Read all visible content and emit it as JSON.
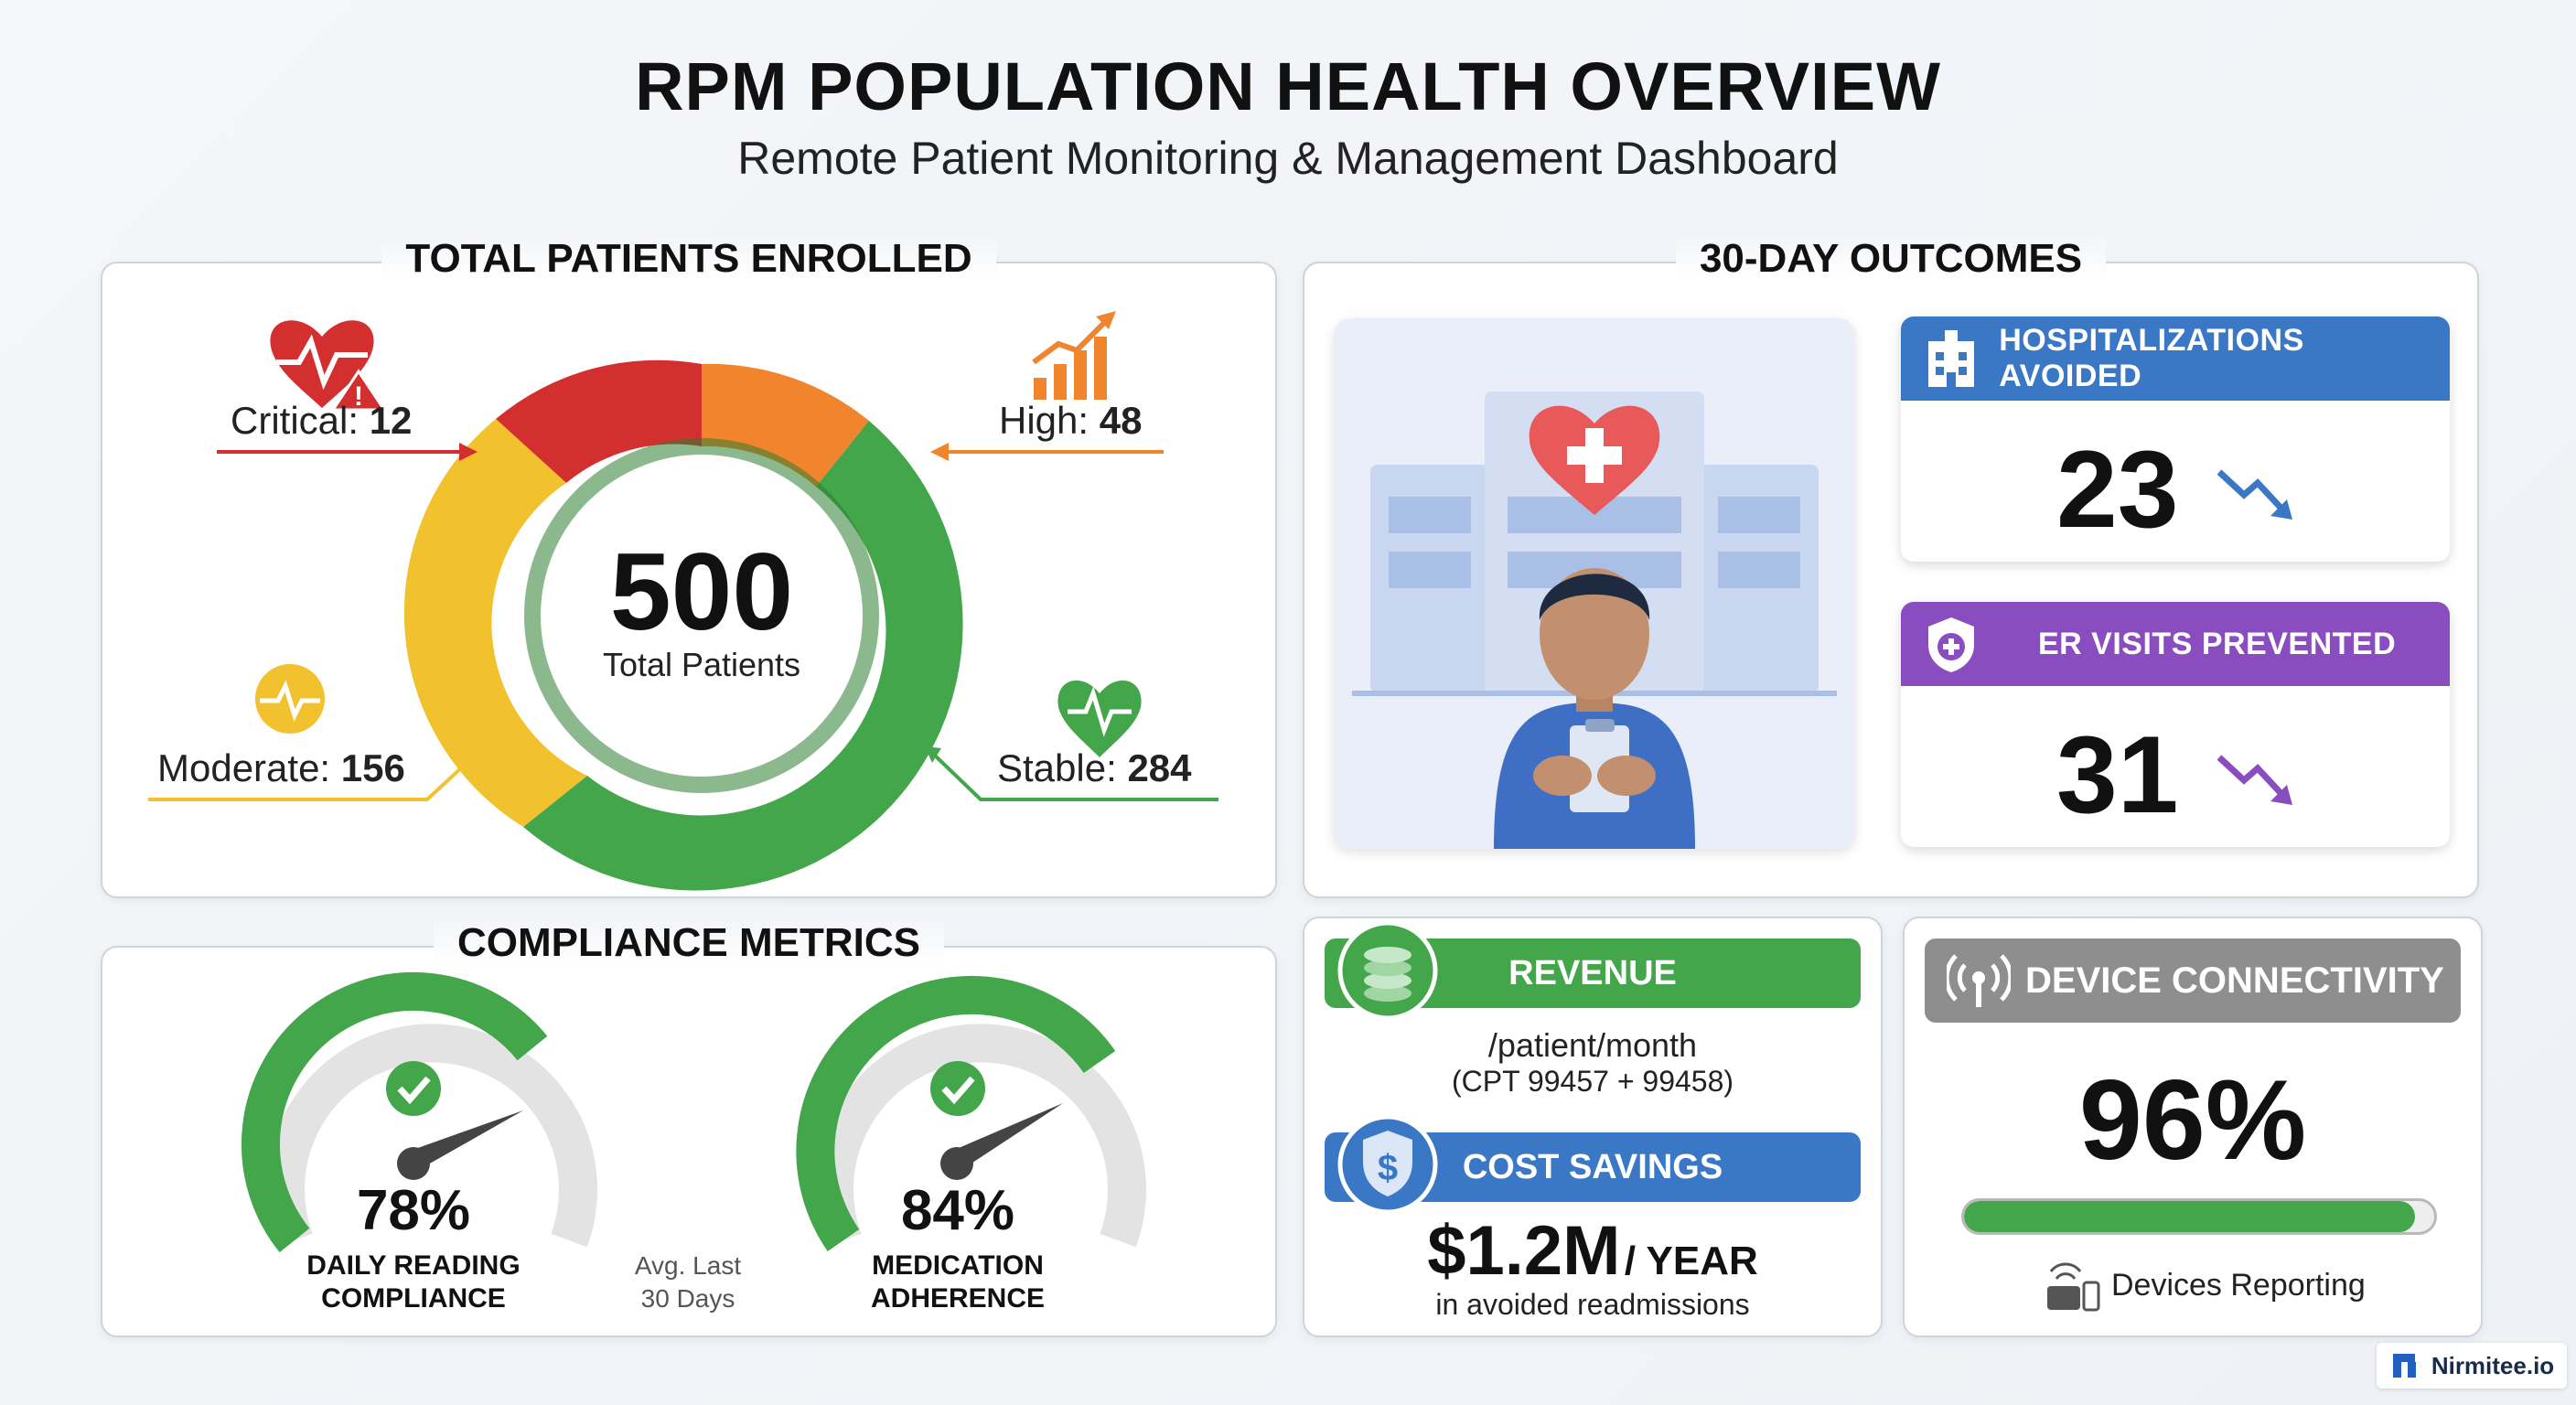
{
  "header": {
    "title": "RPM POPULATION HEALTH OVERVIEW",
    "subtitle": "Remote Patient Monitoring & Management Dashboard"
  },
  "enrolled": {
    "title": "TOTAL PATIENTS ENROLLED",
    "total": "500",
    "total_label": "Total Patients",
    "segments": {
      "critical": {
        "label": "Critical:",
        "value": "12",
        "color": "#d32f2f"
      },
      "high": {
        "label": "High:",
        "value": "48",
        "color": "#f0852d"
      },
      "moderate": {
        "label": "Moderate:",
        "value": "156",
        "color": "#f2c12e"
      },
      "stable": {
        "label": "Stable:",
        "value": "284",
        "color": "#43a64a"
      }
    }
  },
  "outcomes": {
    "title": "30-DAY OUTCOMES",
    "hospitalizations": {
      "label": "HOSPITALIZATIONS AVOIDED",
      "value": "23",
      "color": "#3a78c6"
    },
    "er_visits": {
      "label": "ER VISITS PREVENTED",
      "value": "31",
      "color": "#8a4dbf"
    }
  },
  "compliance": {
    "title": "COMPLIANCE METRICS",
    "daily": {
      "pct": "78%",
      "fraction": 0.78,
      "label_line1": "DAILY READING",
      "label_line2": "COMPLIANCE"
    },
    "medication": {
      "pct": "84%",
      "fraction": 0.84,
      "label_line1": "MEDICATION",
      "label_line2": "ADHERENCE"
    },
    "avg_line1": "Avg. Last",
    "avg_line2": "30 Days"
  },
  "revenue": {
    "label": "REVENUE",
    "line1": "/patient/month",
    "line2": "(CPT 99457 + 99458)"
  },
  "savings": {
    "label": "COST SAVINGS",
    "amount": "$1.2M",
    "unit": "/ YEAR",
    "note": "in avoided readmissions"
  },
  "device": {
    "label": "DEVICE CONNECTIVITY",
    "pct": "96%",
    "fraction": 0.96,
    "footer": "Devices Reporting"
  },
  "brand": {
    "name": "Nirmitee.io"
  },
  "colors": {
    "green": "#43a64a",
    "blue": "#3a78c6",
    "purple": "#8a4dbf",
    "gray": "#8e8e8e"
  }
}
